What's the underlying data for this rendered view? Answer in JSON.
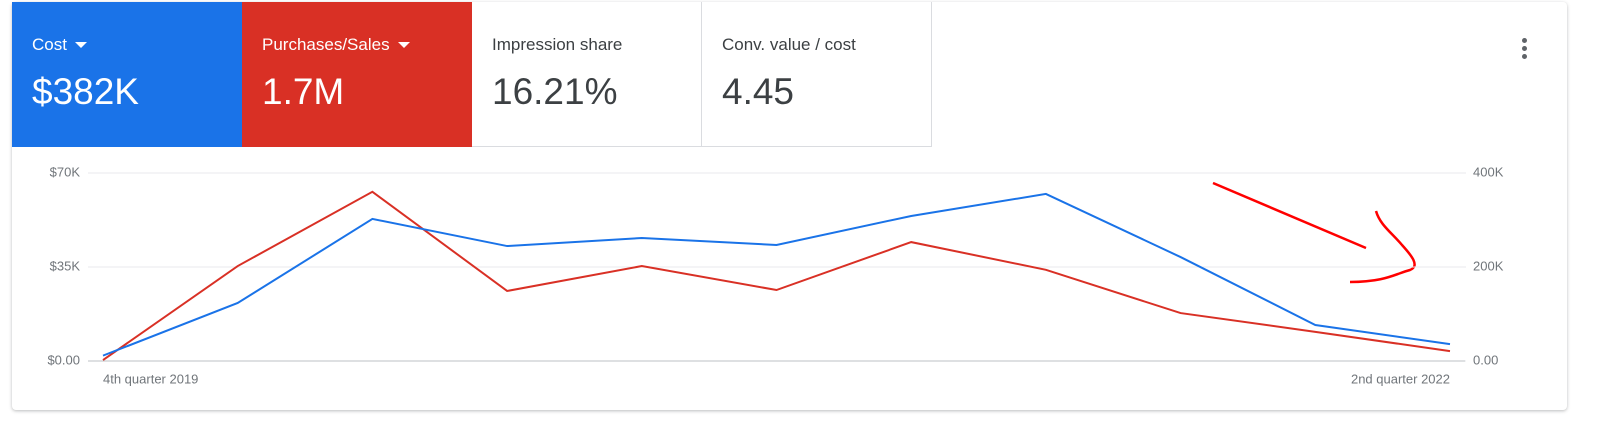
{
  "scorecards": [
    {
      "value": "$382K"
    },
    {
      "value": "1.7M"
    },
    {
      "label": "Impression share",
      "value": "16.21%"
    },
    {
      "label": "Conv. value / cost",
      "value": "4.45"
    }
  ],
  "chart_data": {
    "type": "line",
    "categories": [
      "4th quarter 2019",
      null,
      null,
      null,
      null,
      null,
      null,
      null,
      null,
      null,
      "2nd quarter 2022"
    ],
    "series": [
      {
        "name": "Cost",
        "color": "#1a73e8",
        "values": [
          2000,
          21600,
          52900,
          42800,
          45800,
          43200,
          54000,
          62200,
          38700,
          13400,
          6300
        ]
      },
      {
        "name": "Purchases/Sales",
        "color": "#d93025",
        "axis": "y2",
        "values": [
          2000,
          202000,
          360000,
          149000,
          202000,
          151000,
          253000,
          194000,
          102000,
          62000,
          21000
        ]
      }
    ],
    "ylim": [
      0,
      70000
    ],
    "yticks": [
      {
        "value": 0,
        "label": "$0.00"
      },
      {
        "value": 35000,
        "label": "$35K"
      },
      {
        "value": 70000,
        "label": "$70K"
      }
    ],
    "y2lim": [
      0,
      400000
    ],
    "y2ticks": [
      {
        "value": 0,
        "label": "0.00"
      },
      {
        "value": 200000,
        "label": "200K"
      },
      {
        "value": 400000,
        "label": "400K"
      }
    ],
    "grid": true
  }
}
